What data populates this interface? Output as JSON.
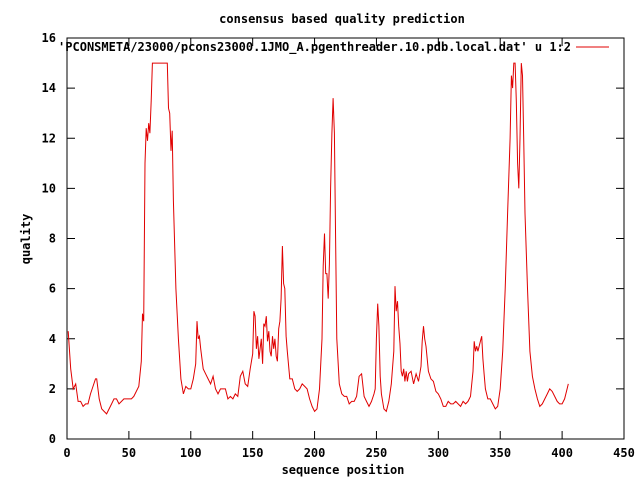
{
  "chart_data": {
    "type": "line",
    "title": "consensus based quality prediction",
    "xlabel": "sequence position",
    "ylabel": "quality",
    "xlim": [
      0,
      450
    ],
    "ylim": [
      0,
      16
    ],
    "xticks": [
      "0",
      "50",
      "100",
      "150",
      "200",
      "250",
      "300",
      "350",
      "400",
      "450"
    ],
    "yticks": [
      "0",
      "2",
      "4",
      "6",
      "8",
      "10",
      "12",
      "14",
      "16"
    ],
    "legend_position": "top-right",
    "series": [
      {
        "name": "'PCONSMETA/23000/pcons23000.1JMO_A.pgenthreader.10.pdb.local.dat' u 1:2",
        "color": "#e00000",
        "points": [
          [
            1,
            4.3
          ],
          [
            3,
            2.8
          ],
          [
            5,
            2.0
          ],
          [
            7,
            2.2
          ],
          [
            9,
            1.5
          ],
          [
            11,
            1.5
          ],
          [
            13,
            1.3
          ],
          [
            15,
            1.4
          ],
          [
            17,
            1.4
          ],
          [
            19,
            1.8
          ],
          [
            21,
            2.1
          ],
          [
            23,
            2.4
          ],
          [
            24,
            2.4
          ],
          [
            26,
            1.6
          ],
          [
            28,
            1.2
          ],
          [
            30,
            1.1
          ],
          [
            32,
            1.0
          ],
          [
            34,
            1.2
          ],
          [
            36,
            1.4
          ],
          [
            38,
            1.6
          ],
          [
            40,
            1.6
          ],
          [
            42,
            1.4
          ],
          [
            44,
            1.5
          ],
          [
            46,
            1.6
          ],
          [
            48,
            1.6
          ],
          [
            50,
            1.6
          ],
          [
            52,
            1.6
          ],
          [
            54,
            1.7
          ],
          [
            56,
            1.9
          ],
          [
            58,
            2.1
          ],
          [
            60,
            3.1
          ],
          [
            61,
            5.0
          ],
          [
            62,
            4.7
          ],
          [
            63,
            11.0
          ],
          [
            64,
            12.4
          ],
          [
            65,
            11.9
          ],
          [
            66,
            12.6
          ],
          [
            67,
            12.2
          ],
          [
            68,
            13.5
          ],
          [
            69,
            15.0
          ],
          [
            71,
            15.0
          ],
          [
            73,
            15.0
          ],
          [
            75,
            15.0
          ],
          [
            77,
            15.0
          ],
          [
            79,
            15.0
          ],
          [
            81,
            15.0
          ],
          [
            82,
            13.2
          ],
          [
            83,
            13.0
          ],
          [
            84,
            11.5
          ],
          [
            85,
            12.3
          ],
          [
            86,
            9.5
          ],
          [
            88,
            6.0
          ],
          [
            90,
            4.0
          ],
          [
            92,
            2.4
          ],
          [
            94,
            1.8
          ],
          [
            96,
            2.1
          ],
          [
            98,
            2.0
          ],
          [
            100,
            2.0
          ],
          [
            102,
            2.4
          ],
          [
            104,
            3.0
          ],
          [
            105,
            4.7
          ],
          [
            106,
            4.0
          ],
          [
            107,
            4.1
          ],
          [
            108,
            3.6
          ],
          [
            110,
            2.8
          ],
          [
            112,
            2.6
          ],
          [
            114,
            2.4
          ],
          [
            116,
            2.2
          ],
          [
            118,
            2.5
          ],
          [
            120,
            2.0
          ],
          [
            122,
            1.8
          ],
          [
            124,
            2.0
          ],
          [
            126,
            2.0
          ],
          [
            128,
            2.0
          ],
          [
            130,
            1.6
          ],
          [
            132,
            1.7
          ],
          [
            134,
            1.6
          ],
          [
            136,
            1.8
          ],
          [
            138,
            1.7
          ],
          [
            140,
            2.5
          ],
          [
            142,
            2.7
          ],
          [
            144,
            2.2
          ],
          [
            146,
            2.1
          ],
          [
            148,
            2.8
          ],
          [
            150,
            3.4
          ],
          [
            151,
            5.1
          ],
          [
            152,
            4.9
          ],
          [
            153,
            3.6
          ],
          [
            154,
            4.1
          ],
          [
            155,
            3.2
          ],
          [
            156,
            3.6
          ],
          [
            157,
            4.0
          ],
          [
            158,
            3.0
          ],
          [
            159,
            4.6
          ],
          [
            160,
            4.5
          ],
          [
            161,
            4.9
          ],
          [
            162,
            3.9
          ],
          [
            163,
            4.3
          ],
          [
            164,
            3.5
          ],
          [
            165,
            3.3
          ],
          [
            166,
            4.1
          ],
          [
            167,
            3.6
          ],
          [
            168,
            4.0
          ],
          [
            169,
            3.3
          ],
          [
            170,
            3.1
          ],
          [
            171,
            4.4
          ],
          [
            172,
            4.7
          ],
          [
            173,
            5.6
          ],
          [
            174,
            7.7
          ],
          [
            175,
            6.2
          ],
          [
            176,
            6.0
          ],
          [
            177,
            4.1
          ],
          [
            178,
            3.5
          ],
          [
            180,
            2.4
          ],
          [
            182,
            2.4
          ],
          [
            184,
            2.0
          ],
          [
            186,
            1.9
          ],
          [
            188,
            2.0
          ],
          [
            190,
            2.2
          ],
          [
            192,
            2.1
          ],
          [
            194,
            2.0
          ],
          [
            196,
            1.6
          ],
          [
            198,
            1.3
          ],
          [
            200,
            1.1
          ],
          [
            202,
            1.2
          ],
          [
            204,
            2.0
          ],
          [
            206,
            4.0
          ],
          [
            207,
            6.9
          ],
          [
            208,
            8.2
          ],
          [
            209,
            6.6
          ],
          [
            210,
            6.6
          ],
          [
            211,
            5.6
          ],
          [
            212,
            7.0
          ],
          [
            213,
            10.0
          ],
          [
            214,
            12.2
          ],
          [
            215,
            13.6
          ],
          [
            216,
            12.2
          ],
          [
            217,
            8.0
          ],
          [
            218,
            4.0
          ],
          [
            220,
            2.2
          ],
          [
            222,
            1.8
          ],
          [
            224,
            1.7
          ],
          [
            226,
            1.7
          ],
          [
            228,
            1.4
          ],
          [
            230,
            1.5
          ],
          [
            232,
            1.5
          ],
          [
            234,
            1.7
          ],
          [
            236,
            2.5
          ],
          [
            238,
            2.6
          ],
          [
            240,
            1.7
          ],
          [
            242,
            1.5
          ],
          [
            244,
            1.3
          ],
          [
            246,
            1.5
          ],
          [
            248,
            1.8
          ],
          [
            249,
            2.0
          ],
          [
            250,
            4.0
          ],
          [
            251,
            5.4
          ],
          [
            252,
            4.5
          ],
          [
            253,
            2.5
          ],
          [
            254,
            1.8
          ],
          [
            256,
            1.2
          ],
          [
            258,
            1.1
          ],
          [
            260,
            1.5
          ],
          [
            262,
            2.2
          ],
          [
            264,
            3.5
          ],
          [
            265,
            6.1
          ],
          [
            266,
            5.1
          ],
          [
            267,
            5.5
          ],
          [
            268,
            4.5
          ],
          [
            269,
            3.8
          ],
          [
            270,
            2.7
          ],
          [
            271,
            2.5
          ],
          [
            272,
            2.8
          ],
          [
            273,
            2.3
          ],
          [
            274,
            2.7
          ],
          [
            275,
            2.3
          ],
          [
            276,
            2.6
          ],
          [
            278,
            2.7
          ],
          [
            280,
            2.2
          ],
          [
            282,
            2.6
          ],
          [
            284,
            2.3
          ],
          [
            286,
            2.9
          ],
          [
            287,
            3.9
          ],
          [
            288,
            4.5
          ],
          [
            289,
            4.0
          ],
          [
            290,
            3.7
          ],
          [
            292,
            2.7
          ],
          [
            294,
            2.4
          ],
          [
            296,
            2.3
          ],
          [
            298,
            1.9
          ],
          [
            300,
            1.8
          ],
          [
            302,
            1.6
          ],
          [
            304,
            1.3
          ],
          [
            306,
            1.3
          ],
          [
            308,
            1.5
          ],
          [
            310,
            1.4
          ],
          [
            312,
            1.4
          ],
          [
            314,
            1.5
          ],
          [
            316,
            1.4
          ],
          [
            318,
            1.3
          ],
          [
            320,
            1.5
          ],
          [
            322,
            1.4
          ],
          [
            324,
            1.5
          ],
          [
            326,
            1.7
          ],
          [
            328,
            2.7
          ],
          [
            329,
            3.9
          ],
          [
            330,
            3.5
          ],
          [
            331,
            3.7
          ],
          [
            332,
            3.5
          ],
          [
            334,
            3.9
          ],
          [
            335,
            4.1
          ],
          [
            336,
            3.2
          ],
          [
            337,
            2.6
          ],
          [
            338,
            2.0
          ],
          [
            340,
            1.6
          ],
          [
            342,
            1.6
          ],
          [
            344,
            1.4
          ],
          [
            346,
            1.2
          ],
          [
            348,
            1.3
          ],
          [
            350,
            2.0
          ],
          [
            352,
            3.5
          ],
          [
            354,
            6.0
          ],
          [
            356,
            9.0
          ],
          [
            358,
            12.0
          ],
          [
            359,
            14.5
          ],
          [
            360,
            14.0
          ],
          [
            361,
            15.0
          ],
          [
            362,
            15.0
          ],
          [
            363,
            13.5
          ],
          [
            364,
            11.0
          ],
          [
            365,
            10.0
          ],
          [
            366,
            12.0
          ],
          [
            367,
            15.0
          ],
          [
            368,
            14.5
          ],
          [
            369,
            12.0
          ],
          [
            370,
            9.0
          ],
          [
            372,
            6.0
          ],
          [
            374,
            3.5
          ],
          [
            376,
            2.5
          ],
          [
            378,
            2.0
          ],
          [
            380,
            1.6
          ],
          [
            382,
            1.3
          ],
          [
            384,
            1.4
          ],
          [
            386,
            1.6
          ],
          [
            388,
            1.8
          ],
          [
            390,
            2.0
          ],
          [
            392,
            1.9
          ],
          [
            394,
            1.7
          ],
          [
            396,
            1.5
          ],
          [
            398,
            1.4
          ],
          [
            400,
            1.4
          ],
          [
            402,
            1.6
          ],
          [
            404,
            2.0
          ],
          [
            405,
            2.2
          ]
        ]
      }
    ]
  }
}
